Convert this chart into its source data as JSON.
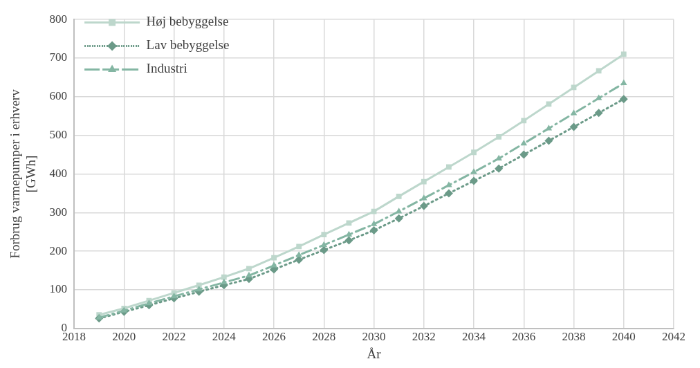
{
  "chart_data": {
    "type": "line",
    "xlabel": "År",
    "ylabel": "Forbrug varmepumper i erhverv [GWh]",
    "x": [
      2019,
      2020,
      2021,
      2022,
      2023,
      2024,
      2025,
      2026,
      2027,
      2028,
      2029,
      2030,
      2031,
      2032,
      2033,
      2034,
      2035,
      2036,
      2037,
      2038,
      2039,
      2040
    ],
    "xlim": [
      2018,
      2042
    ],
    "xticks": [
      2018,
      2020,
      2022,
      2024,
      2026,
      2028,
      2030,
      2032,
      2034,
      2036,
      2038,
      2040,
      2042
    ],
    "ylim": [
      0,
      800
    ],
    "yticks": [
      0,
      100,
      200,
      300,
      400,
      500,
      600,
      700,
      800
    ],
    "grid": true,
    "legend": "top left",
    "series": [
      {
        "name": "Høj bebyggelse",
        "color": "#bdd7cc",
        "marker": "square",
        "line_style": "solid",
        "values": [
          35,
          52,
          72,
          92,
          112,
          133,
          155,
          183,
          212,
          243,
          273,
          303,
          342,
          380,
          418,
          456,
          496,
          538,
          581,
          624,
          667,
          710
        ]
      },
      {
        "name": "Lav bebyggelse",
        "color": "#6b9a88",
        "marker": "diamond",
        "line_style": "dotted",
        "values": [
          26,
          43,
          60,
          78,
          95,
          112,
          128,
          153,
          178,
          203,
          228,
          254,
          285,
          317,
          350,
          382,
          414,
          450,
          486,
          522,
          558,
          594
        ]
      },
      {
        "name": "Industri",
        "color": "#84b6a3",
        "marker": "triangle",
        "line_style": "dashed",
        "values": [
          28,
          46,
          65,
          83,
          101,
          119,
          137,
          163,
          190,
          216,
          243,
          270,
          303,
          337,
          371,
          405,
          440,
          479,
          518,
          557,
          596,
          635
        ]
      }
    ]
  }
}
